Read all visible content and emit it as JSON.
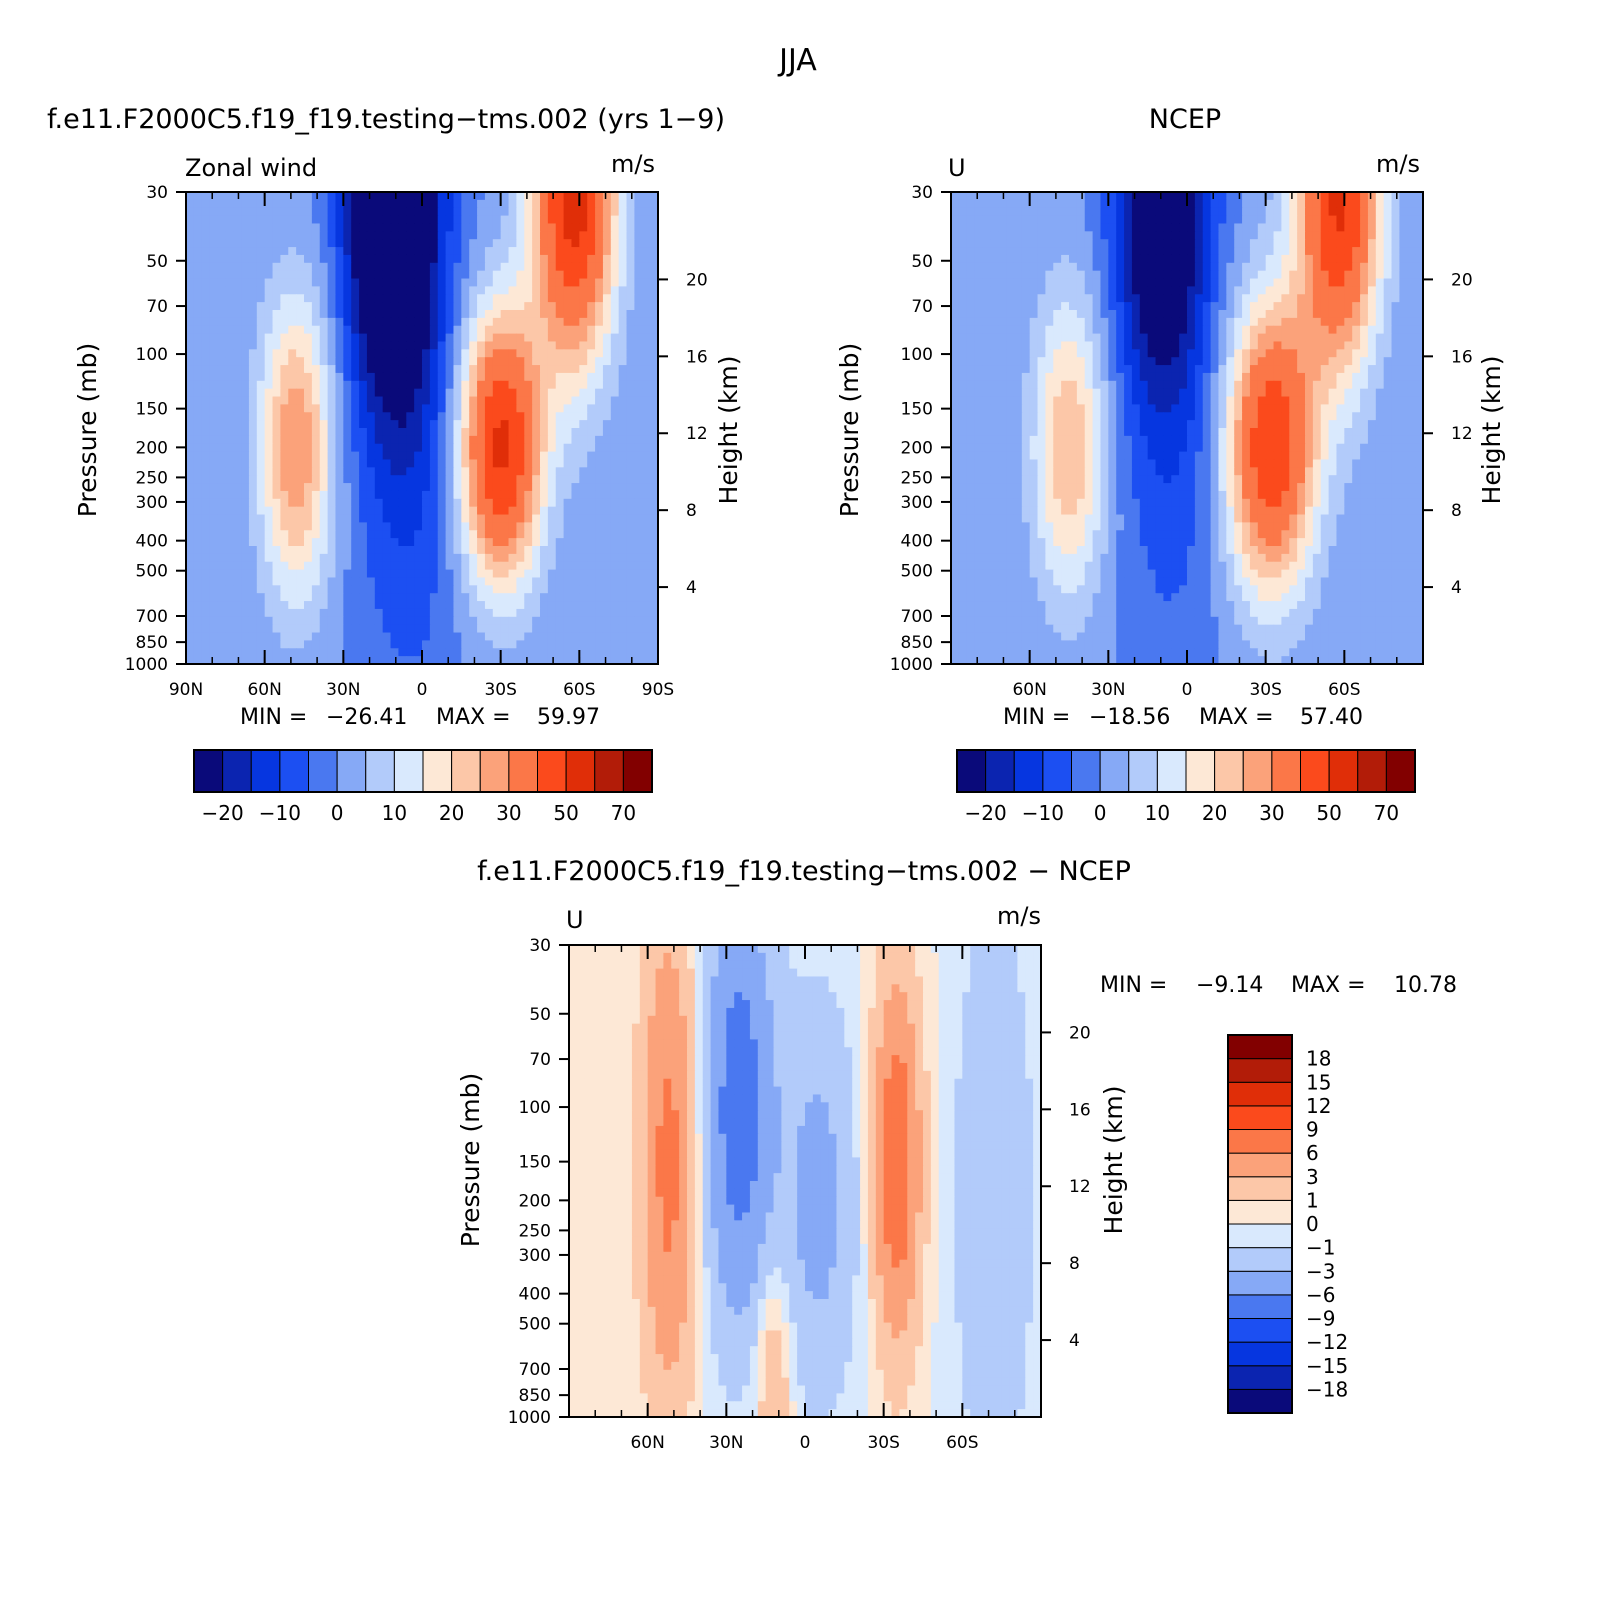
{
  "figure": {
    "title": "JJA"
  },
  "colormaps": {
    "field": [
      "#0a0a7a",
      "#0b24b0",
      "#0636e0",
      "#1c4ff2",
      "#4a78f0",
      "#86a9f6",
      "#b2cbfa",
      "#d9e9fd",
      "#fde8d6",
      "#fcc7a8",
      "#fba27a",
      "#fb7748",
      "#fb4a1c",
      "#e02e08",
      "#b21c08",
      "#820000"
    ],
    "diff": [
      "#0a0a7a",
      "#0b24b0",
      "#0636e0",
      "#1c4ff2",
      "#4a78f0",
      "#86a9f6",
      "#b2cbfa",
      "#d9e9fd",
      "#fde8d6",
      "#fcc7a8",
      "#fba27a",
      "#fb7748",
      "#fb4a1c",
      "#e02e08",
      "#b21c08",
      "#820000"
    ]
  },
  "chart_data": [
    {
      "id": "model",
      "type": "contour",
      "title": "f.e11.F2000C5.f19_f19.testing−tms.002 (yrs 1−9)",
      "left_label": "Zonal wind",
      "units": "m/s",
      "ylabel": "Pressure (mb)",
      "ylabel_right": "Height (km)",
      "x_range": [
        90,
        -90
      ],
      "y_range": [
        1000,
        30
      ],
      "x_ticks": [
        90,
        60,
        30,
        0,
        -30,
        -60,
        -90
      ],
      "x_tick_labels": [
        "90N",
        "60N",
        "30N",
        "0",
        "30S",
        "60S",
        "90S"
      ],
      "y_ticks": [
        30,
        50,
        70,
        100,
        150,
        200,
        250,
        300,
        400,
        500,
        700,
        850,
        1000
      ],
      "y_tick_labels": [
        "30",
        "50",
        "70",
        "100",
        "150",
        "200",
        "250",
        "300",
        "400",
        "500",
        "700",
        "850",
        "1000"
      ],
      "height_ticks": [
        20,
        16,
        12,
        8,
        4
      ],
      "height_tick_labels": [
        "20",
        "16",
        "12",
        "8",
        "4"
      ],
      "stats": {
        "min_label": "MIN =",
        "min": "−26.41",
        "max_label": "MAX =",
        "max": "59.97"
      },
      "colorbar_levels": [
        -25,
        -20,
        -15,
        -10,
        -5,
        0,
        5,
        10,
        15,
        20,
        25,
        30,
        40,
        50,
        60,
        70
      ],
      "colorbar_tick_labels": [
        "−20",
        "−10",
        "0",
        "10",
        "20",
        "30",
        "50",
        "70"
      ],
      "colormap": "field",
      "features": [
        {
          "name": "subtropical-jet-sh",
          "lat": -30,
          "p": 200,
          "amp": 52,
          "sx": 11,
          "sy": 0.7
        },
        {
          "name": "polar-night-jet-sh",
          "lat": -58,
          "p": 30,
          "amp": 55,
          "sx": 11,
          "sy": 0.9
        },
        {
          "name": "nh-westerly-jet",
          "lat": 48,
          "p": 200,
          "amp": 30,
          "sx": 10,
          "sy": 0.8
        },
        {
          "name": "tropical-easterlies",
          "lat": 12,
          "p": 30,
          "amp": -40,
          "sx": 12,
          "sy": 1.0
        },
        {
          "name": "tropical-easterlies-low",
          "lat": 5,
          "p": 150,
          "amp": -12,
          "sx": 14,
          "sy": 1.4
        }
      ]
    },
    {
      "id": "obs",
      "type": "contour",
      "title": "NCEP",
      "left_label": "U",
      "units": "m/s",
      "ylabel": "Pressure (mb)",
      "ylabel_right": "Height (km)",
      "x_range": [
        90,
        -90
      ],
      "y_range": [
        1000,
        30
      ],
      "x_ticks": [
        60,
        30,
        0,
        -30,
        -60
      ],
      "x_tick_labels": [
        "60N",
        "30N",
        "0",
        "30S",
        "60S"
      ],
      "y_ticks": [
        30,
        50,
        70,
        100,
        150,
        200,
        250,
        300,
        400,
        500,
        700,
        850,
        1000
      ],
      "y_tick_labels": [
        "30",
        "50",
        "70",
        "100",
        "150",
        "200",
        "250",
        "300",
        "400",
        "500",
        "700",
        "850",
        "1000"
      ],
      "height_ticks": [
        20,
        16,
        12,
        8,
        4
      ],
      "height_tick_labels": [
        "20",
        "16",
        "12",
        "8",
        "4"
      ],
      "stats": {
        "min_label": "MIN =",
        "min": "−18.56",
        "max_label": "MAX =",
        "max": "57.40"
      },
      "colorbar_levels": [
        -25,
        -20,
        -15,
        -10,
        -5,
        0,
        5,
        10,
        15,
        20,
        25,
        30,
        40,
        50,
        60,
        70
      ],
      "colorbar_tick_labels": [
        "−20",
        "−10",
        "0",
        "10",
        "20",
        "30",
        "50",
        "70"
      ],
      "colormap": "field",
      "features": [
        {
          "name": "subtropical-jet-sh",
          "lat": -32,
          "p": 200,
          "amp": 48,
          "sx": 12,
          "sy": 0.75
        },
        {
          "name": "polar-night-jet-sh",
          "lat": -58,
          "p": 30,
          "amp": 52,
          "sx": 11,
          "sy": 0.9
        },
        {
          "name": "nh-westerly-jet",
          "lat": 45,
          "p": 200,
          "amp": 25,
          "sx": 10,
          "sy": 0.8
        },
        {
          "name": "tropical-easterlies",
          "lat": 10,
          "p": 30,
          "amp": -30,
          "sx": 12,
          "sy": 1.0
        },
        {
          "name": "tropical-easterlies-low",
          "lat": 5,
          "p": 150,
          "amp": -8,
          "sx": 14,
          "sy": 1.4
        }
      ]
    },
    {
      "id": "diff",
      "type": "contour",
      "title": "f.e11.F2000C5.f19_f19.testing−tms.002 − NCEP",
      "left_label": "U",
      "units": "m/s",
      "ylabel": "Pressure (mb)",
      "ylabel_right": "Height (km)",
      "x_range": [
        90,
        -90
      ],
      "y_range": [
        1000,
        30
      ],
      "x_ticks": [
        60,
        30,
        0,
        -30,
        -60
      ],
      "x_tick_labels": [
        "60N",
        "30N",
        "0",
        "30S",
        "60S"
      ],
      "y_ticks": [
        30,
        50,
        70,
        100,
        150,
        200,
        250,
        300,
        400,
        500,
        700,
        850,
        1000
      ],
      "y_tick_labels": [
        "30",
        "50",
        "70",
        "100",
        "150",
        "200",
        "250",
        "300",
        "400",
        "500",
        "700",
        "850",
        "1000"
      ],
      "height_ticks": [
        20,
        16,
        12,
        8,
        4
      ],
      "height_tick_labels": [
        "20",
        "16",
        "12",
        "8",
        "4"
      ],
      "stats": {
        "min_label": "MIN =",
        "min": "−9.14",
        "max_label": "MAX =",
        "max": "10.78"
      },
      "colorbar_levels": [
        -21,
        -18,
        -15,
        -12,
        -9,
        -6,
        -3,
        -1,
        0,
        1,
        3,
        6,
        9,
        12,
        15,
        18
      ],
      "colorbar_tick_labels": [
        "18",
        "15",
        "12",
        "9",
        "6",
        "3",
        "1",
        "0",
        "−1",
        "−3",
        "−6",
        "−9",
        "−12",
        "−15",
        "−18"
      ],
      "colormap": "diff",
      "features": [
        {
          "name": "positive-nh-midlat",
          "lat": 52,
          "p": 150,
          "amp": 7,
          "sx": 7,
          "sy": 1.2
        },
        {
          "name": "positive-sh-subtropics",
          "lat": -35,
          "p": 150,
          "amp": 9,
          "sx": 6,
          "sy": 0.9
        },
        {
          "name": "negative-nh-tropics",
          "lat": 25,
          "p": 100,
          "amp": -8,
          "sx": 9,
          "sy": 1.1
        },
        {
          "name": "negative-tropics-mid",
          "lat": -5,
          "p": 200,
          "amp": -4,
          "sx": 10,
          "sy": 1.0
        },
        {
          "name": "positive-lower-tropics",
          "lat": 12,
          "p": 700,
          "amp": 3,
          "sx": 5,
          "sy": 0.6
        },
        {
          "name": "negative-sh-highlat",
          "lat": -72,
          "p": 200,
          "amp": -3,
          "sx": 10,
          "sy": 1.5
        }
      ]
    }
  ]
}
